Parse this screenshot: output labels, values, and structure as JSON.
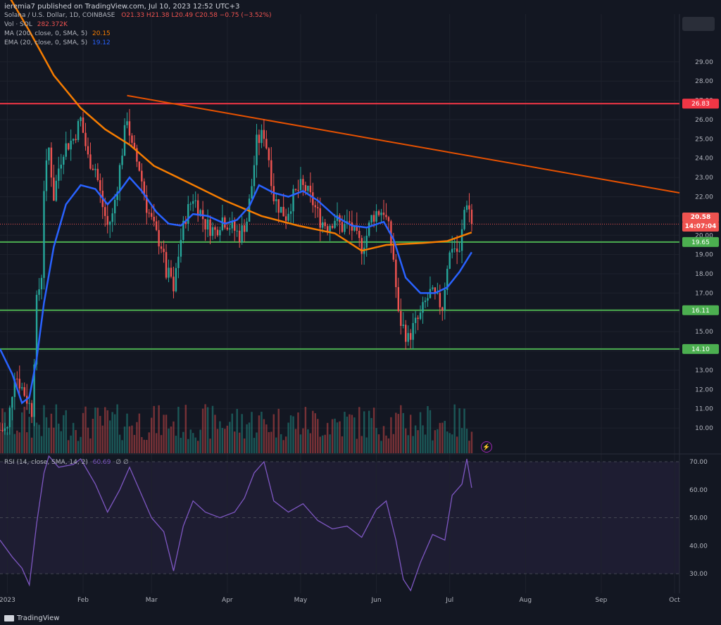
{
  "header": {
    "published": "ieremia7 published on TradingView.com, Jul 10, 2023 12:52 UTC+3",
    "symbol": "Solana / U.S. Dollar, 1D, COINBASE",
    "ohlc": "O21.33 H21.38 L20.49 C20.58 −0.75 (−3.52%)",
    "vol_label": "Vol · SOL",
    "vol_value": "282.372K",
    "ma_label": "MA (200, close, 0, SMA, 5)",
    "ma_value": "20.15",
    "ema_label": "EMA (20, close, 0, SMA, 5)",
    "ema_value": "19.12",
    "rsi_label": "RSI (14, close, SMA, 14, 2)",
    "rsi_value": "60.69",
    "rsi_extra": "∅ ∅"
  },
  "price_pill": {
    "value": "20.58",
    "countdown": "14:07:04"
  },
  "footer": {
    "brand": "TradingView"
  },
  "colors": {
    "background": "#131722",
    "grid": "#1e222d",
    "up": "#26a69a",
    "down": "#ef5350",
    "ma200": "#f57c00",
    "ema20": "#2962ff",
    "rsi": "#7e57c2",
    "resistance": "#f23645",
    "support": "#4caf50",
    "trendline": "#e65100"
  },
  "chart_data": [
    {
      "type": "candlestick",
      "title": "Solana / U.S. Dollar, 1D, COINBASE",
      "x_ticks": [
        "2023",
        "Feb",
        "Mar",
        "Apr",
        "May",
        "Jun",
        "Jul",
        "Aug",
        "Sep",
        "Oct"
      ],
      "x_tick_dates": [
        "2023-01-01",
        "2023-02-01",
        "2023-03-01",
        "2023-04-01",
        "2023-05-01",
        "2023-06-01",
        "2023-07-01",
        "2023-08-01",
        "2023-09-01",
        "2023-10-01"
      ],
      "x_range": [
        "2022-12-29",
        "2023-10-03"
      ],
      "y_ticks": [
        10,
        11,
        12,
        13,
        14,
        15,
        16,
        17,
        18,
        19,
        20,
        21,
        22,
        23,
        24,
        25,
        26,
        27,
        28,
        29
      ],
      "ylim": [
        9.2,
        30.6
      ],
      "horizontal_levels": [
        {
          "value": 26.83,
          "label": "26.83",
          "kind": "resistance"
        },
        {
          "value": 19.65,
          "label": "19.65",
          "kind": "support"
        },
        {
          "value": 16.11,
          "label": "16.11",
          "kind": "support"
        },
        {
          "value": 14.1,
          "label": "14.10",
          "kind": "support"
        }
      ],
      "trendline": {
        "from": [
          "2023-02-19",
          27.25
        ],
        "to": [
          "2023-10-03",
          22.2
        ]
      },
      "last_price": 20.58,
      "anchors": [
        [
          "2022-12-29",
          9.9
        ],
        [
          "2023-01-01",
          9.9
        ],
        [
          "2023-01-04",
          12.9
        ],
        [
          "2023-01-08",
          11.8
        ],
        [
          "2023-01-11",
          10.9
        ],
        [
          "2023-01-13",
          16.5
        ],
        [
          "2023-01-15",
          18.0
        ],
        [
          "2023-01-16",
          22.5
        ],
        [
          "2023-01-18",
          24.5
        ],
        [
          "2023-01-20",
          22.0
        ],
        [
          "2023-01-22",
          23.5
        ],
        [
          "2023-01-24",
          24.5
        ],
        [
          "2023-01-28",
          25.0
        ],
        [
          "2023-01-31",
          26.0
        ],
        [
          "2023-02-03",
          24.0
        ],
        [
          "2023-02-06",
          23.5
        ],
        [
          "2023-02-09",
          21.5
        ],
        [
          "2023-02-11",
          20.5
        ],
        [
          "2023-02-13",
          21.0
        ],
        [
          "2023-02-16",
          23.5
        ],
        [
          "2023-02-19",
          26.2
        ],
        [
          "2023-02-21",
          24.5
        ],
        [
          "2023-02-24",
          23.5
        ],
        [
          "2023-02-27",
          21.5
        ],
        [
          "2023-03-03",
          20.0
        ],
        [
          "2023-03-05",
          19.5
        ],
        [
          "2023-03-07",
          18.0
        ],
        [
          "2023-03-09",
          17.8
        ],
        [
          "2023-03-10",
          16.8
        ],
        [
          "2023-03-11",
          18.2
        ],
        [
          "2023-03-13",
          19.8
        ],
        [
          "2023-03-15",
          21.0
        ],
        [
          "2023-03-18",
          22.0
        ],
        [
          "2023-03-21",
          21.2
        ],
        [
          "2023-03-23",
          20.6
        ],
        [
          "2023-03-27",
          20.2
        ],
        [
          "2023-03-30",
          20.9
        ],
        [
          "2023-04-03",
          20.4
        ],
        [
          "2023-04-06",
          20.0
        ],
        [
          "2023-04-09",
          20.8
        ],
        [
          "2023-04-11",
          22.6
        ],
        [
          "2023-04-13",
          24.8
        ],
        [
          "2023-04-16",
          25.3
        ],
        [
          "2023-04-18",
          24.0
        ],
        [
          "2023-04-20",
          22.0
        ],
        [
          "2023-04-22",
          21.5
        ],
        [
          "2023-04-25",
          21.0
        ],
        [
          "2023-04-28",
          22.0
        ],
        [
          "2023-05-01",
          22.5
        ],
        [
          "2023-05-03",
          22.4
        ],
        [
          "2023-05-06",
          21.7
        ],
        [
          "2023-05-09",
          20.8
        ],
        [
          "2023-05-12",
          20.5
        ],
        [
          "2023-05-15",
          20.9
        ],
        [
          "2023-05-18",
          20.4
        ],
        [
          "2023-05-21",
          20.6
        ],
        [
          "2023-05-24",
          19.8
        ],
        [
          "2023-05-26",
          19.4
        ],
        [
          "2023-05-28",
          20.0
        ],
        [
          "2023-05-30",
          20.9
        ],
        [
          "2023-06-01",
          21.2
        ],
        [
          "2023-06-04",
          21.3
        ],
        [
          "2023-06-06",
          20.3
        ],
        [
          "2023-06-08",
          18.8
        ],
        [
          "2023-06-10",
          15.8
        ],
        [
          "2023-06-12",
          15.2
        ],
        [
          "2023-06-14",
          14.6
        ],
        [
          "2023-06-16",
          15.2
        ],
        [
          "2023-06-19",
          15.8
        ],
        [
          "2023-06-21",
          16.5
        ],
        [
          "2023-06-23",
          17.0
        ],
        [
          "2023-06-26",
          16.6
        ],
        [
          "2023-06-28",
          16.3
        ],
        [
          "2023-06-30",
          18.5
        ],
        [
          "2023-07-02",
          19.5
        ],
        [
          "2023-07-05",
          19.0
        ],
        [
          "2023-07-07",
          21.3
        ],
        [
          "2023-07-08",
          21.8
        ],
        [
          "2023-07-09",
          21.33
        ],
        [
          "2023-07-10",
          20.58
        ]
      ],
      "ema20": [
        [
          "2022-12-29",
          14.1
        ],
        [
          "2023-01-03",
          12.8
        ],
        [
          "2023-01-07",
          11.3
        ],
        [
          "2023-01-10",
          11.6
        ],
        [
          "2023-01-13",
          13.6
        ],
        [
          "2023-01-16",
          16.5
        ],
        [
          "2023-01-20",
          19.4
        ],
        [
          "2023-01-25",
          21.6
        ],
        [
          "2023-01-31",
          22.6
        ],
        [
          "2023-02-06",
          22.4
        ],
        [
          "2023-02-11",
          21.6
        ],
        [
          "2023-02-16",
          22.3
        ],
        [
          "2023-02-20",
          23.0
        ],
        [
          "2023-02-25",
          22.3
        ],
        [
          "2023-03-03",
          21.2
        ],
        [
          "2023-03-08",
          20.6
        ],
        [
          "2023-03-13",
          20.5
        ],
        [
          "2023-03-18",
          21.1
        ],
        [
          "2023-03-24",
          21.0
        ],
        [
          "2023-03-31",
          20.6
        ],
        [
          "2023-04-05",
          20.8
        ],
        [
          "2023-04-10",
          21.5
        ],
        [
          "2023-04-14",
          22.6
        ],
        [
          "2023-04-20",
          22.2
        ],
        [
          "2023-04-26",
          22.0
        ],
        [
          "2023-05-02",
          22.3
        ],
        [
          "2023-05-08",
          21.8
        ],
        [
          "2023-05-15",
          21.0
        ],
        [
          "2023-05-22",
          20.5
        ],
        [
          "2023-05-28",
          20.4
        ],
        [
          "2023-06-04",
          20.7
        ],
        [
          "2023-06-08",
          19.8
        ],
        [
          "2023-06-13",
          17.8
        ],
        [
          "2023-06-19",
          17.0
        ],
        [
          "2023-06-25",
          17.0
        ],
        [
          "2023-06-30",
          17.3
        ],
        [
          "2023-07-05",
          18.1
        ],
        [
          "2023-07-10",
          19.12
        ]
      ],
      "ma200": [
        [
          "2022-12-29",
          33.2
        ],
        [
          "2023-01-10",
          30.6
        ],
        [
          "2023-01-20",
          28.3
        ],
        [
          "2023-01-31",
          26.6
        ],
        [
          "2023-02-10",
          25.5
        ],
        [
          "2023-02-20",
          24.7
        ],
        [
          "2023-03-02",
          23.6
        ],
        [
          "2023-03-15",
          22.8
        ],
        [
          "2023-03-31",
          21.8
        ],
        [
          "2023-04-15",
          21.0
        ],
        [
          "2023-04-30",
          20.5
        ],
        [
          "2023-05-15",
          20.1
        ],
        [
          "2023-05-26",
          19.2
        ],
        [
          "2023-06-05",
          19.5
        ],
        [
          "2023-06-20",
          19.6
        ],
        [
          "2023-06-30",
          19.7
        ],
        [
          "2023-07-10",
          20.15
        ]
      ],
      "rsi": {
        "yticks": [
          30,
          40,
          50,
          60,
          70
        ],
        "ylim": [
          23,
          72
        ],
        "band": [
          30,
          70
        ],
        "points": [
          [
            "2022-12-29",
            42
          ],
          [
            "2023-01-03",
            36
          ],
          [
            "2023-01-07",
            32
          ],
          [
            "2023-01-10",
            26
          ],
          [
            "2023-01-13",
            48
          ],
          [
            "2023-01-16",
            66
          ],
          [
            "2023-01-18",
            72
          ],
          [
            "2023-01-22",
            68
          ],
          [
            "2023-01-28",
            69
          ],
          [
            "2023-01-31",
            71
          ],
          [
            "2023-02-06",
            62
          ],
          [
            "2023-02-11",
            52
          ],
          [
            "2023-02-16",
            60
          ],
          [
            "2023-02-20",
            68
          ],
          [
            "2023-02-24",
            60
          ],
          [
            "2023-03-01",
            50
          ],
          [
            "2023-03-06",
            45
          ],
          [
            "2023-03-10",
            31
          ],
          [
            "2023-03-14",
            47
          ],
          [
            "2023-03-18",
            56
          ],
          [
            "2023-03-23",
            52
          ],
          [
            "2023-03-29",
            50
          ],
          [
            "2023-04-04",
            52
          ],
          [
            "2023-04-08",
            57
          ],
          [
            "2023-04-12",
            66
          ],
          [
            "2023-04-16",
            70
          ],
          [
            "2023-04-20",
            56
          ],
          [
            "2023-04-26",
            52
          ],
          [
            "2023-05-02",
            55
          ],
          [
            "2023-05-08",
            49
          ],
          [
            "2023-05-14",
            46
          ],
          [
            "2023-05-20",
            47
          ],
          [
            "2023-05-26",
            43
          ],
          [
            "2023-06-01",
            53
          ],
          [
            "2023-06-05",
            56
          ],
          [
            "2023-06-09",
            42
          ],
          [
            "2023-06-12",
            28
          ],
          [
            "2023-06-15",
            24
          ],
          [
            "2023-06-19",
            34
          ],
          [
            "2023-06-24",
            44
          ],
          [
            "2023-06-29",
            42
          ],
          [
            "2023-07-02",
            58
          ],
          [
            "2023-07-06",
            62
          ],
          [
            "2023-07-08",
            71
          ],
          [
            "2023-07-10",
            60.69
          ]
        ]
      }
    }
  ]
}
